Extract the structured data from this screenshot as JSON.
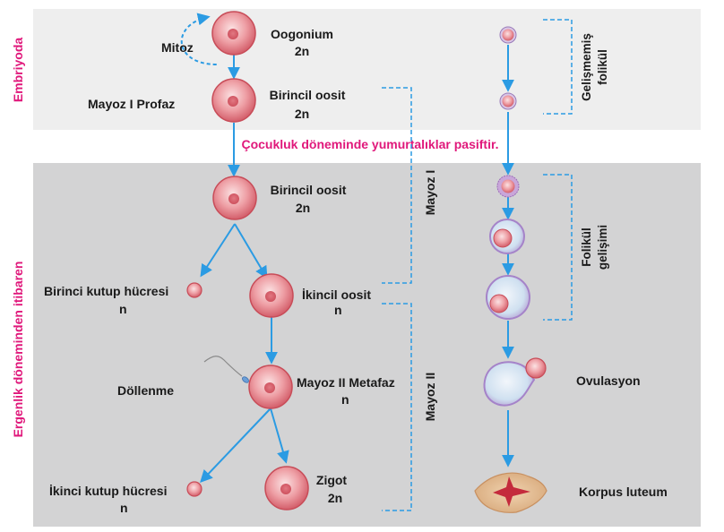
{
  "side_labels": {
    "embryo": "Embriyoda",
    "puberty": "Ergenlik döneminden itibaren"
  },
  "banner": "Çocukluk döneminde yumurtalıklar pasiftir.",
  "cells": {
    "oogonium": {
      "name": "Oogonium",
      "ploidy": "2n"
    },
    "primary_oocyte_1": {
      "name": "Birincil oosit",
      "ploidy": "2n"
    },
    "primary_oocyte_2": {
      "name": "Birincil oosit",
      "ploidy": "2n"
    },
    "secondary_oocyte": {
      "name": "İkincil oosit",
      "ploidy": "n"
    },
    "metaphase": {
      "name": "Mayoz II Metafaz",
      "ploidy": "n"
    },
    "zygote": {
      "name": "Zigot",
      "ploidy": "2n"
    },
    "first_polar": {
      "name": "Birinci kutup hücresi",
      "ploidy": "n"
    },
    "second_polar": {
      "name": "İkinci kutup hücresi",
      "ploidy": "n"
    }
  },
  "process_labels": {
    "mitosis": "Mitoz",
    "prophase": "Mayoz I Profaz",
    "fertilization": "Döllenme",
    "meiosis1": "Mayoz I",
    "meiosis2": "Mayoz II"
  },
  "follicle": {
    "undeveloped_line1": "Gelişmemiş",
    "undeveloped_line2": "folikül",
    "development_line1": "Folikül",
    "development_line2": "gelişimi",
    "ovulation": "Ovulasyon",
    "corpus_luteum": "Korpus luteum"
  },
  "colors": {
    "band_top": "#eeeeee",
    "band_bottom": "#d3d3d4",
    "arrow": "#2b9be3",
    "label_pink": "#e0187b",
    "cell_fill": "#e8888f",
    "cell_stroke": "#c84c58",
    "corpus_fill": "#e8c29a",
    "corpus_scar": "#c42b3c"
  }
}
